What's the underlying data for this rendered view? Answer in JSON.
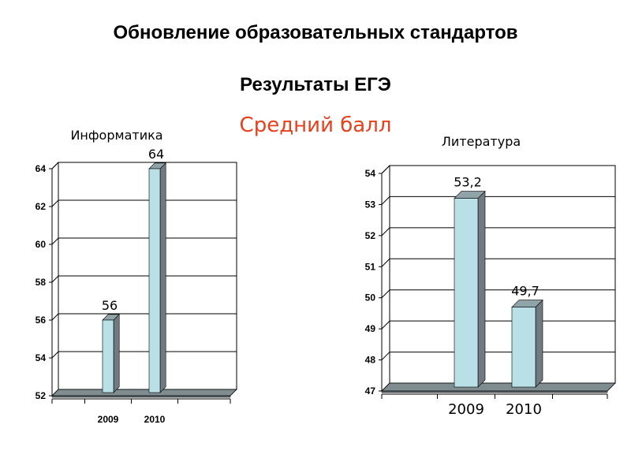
{
  "slide": {
    "title": "Обновление образовательных стандартов",
    "subtitle": "Результаты ЕГЭ",
    "metric": "Средний балл"
  },
  "colors": {
    "bar_front": "#b8e0e6",
    "bar_side": "#6f7b80",
    "bar_top": "#8fa3a8",
    "floor": "#7f8c90",
    "metric_text": "#e8401c"
  },
  "chart_data": [
    {
      "type": "bar",
      "title": "Информатика",
      "categories": [
        "2009",
        "2010"
      ],
      "values": [
        56,
        64
      ],
      "value_labels": [
        "56",
        "64"
      ],
      "ylim": [
        52,
        64
      ],
      "yticks": [
        "52",
        "54",
        "56",
        "58",
        "60",
        "62",
        "64"
      ],
      "grid": true,
      "legend": "none"
    },
    {
      "type": "bar",
      "title": "Литература",
      "categories": [
        "2009",
        "2010"
      ],
      "values": [
        53.2,
        49.7
      ],
      "value_labels": [
        "53,2",
        "49,7"
      ],
      "ylim": [
        47,
        54
      ],
      "yticks": [
        "47",
        "48",
        "49",
        "50",
        "51",
        "52",
        "53",
        "54"
      ],
      "grid": true,
      "legend": "none"
    }
  ]
}
